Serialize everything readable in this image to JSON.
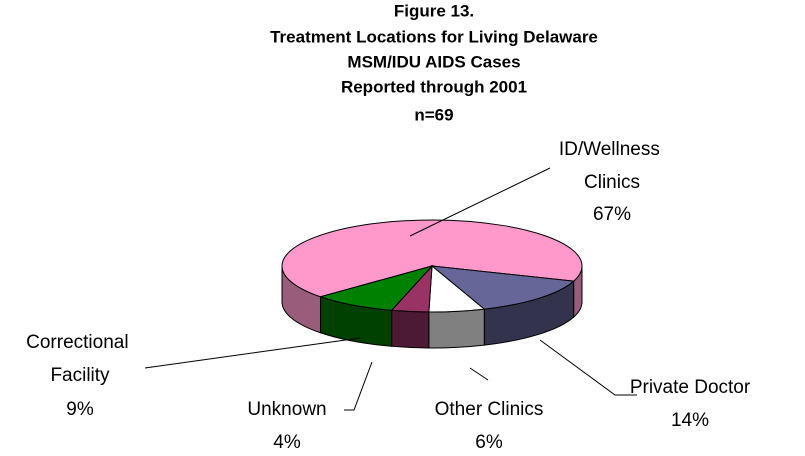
{
  "chart_data": {
    "type": "pie3d",
    "title": [
      "Figure 13.",
      "Treatment Locations for Living Delaware",
      "MSM/IDU AIDS Cases",
      "Reported through 2001",
      "n=69"
    ],
    "categories": [
      "ID/Wellness Clinics",
      "Private Doctor",
      "Other Clinics",
      "Unknown",
      "Correctional Facility"
    ],
    "values": [
      67,
      14,
      6,
      4,
      9
    ],
    "value_labels": [
      "67%",
      "14%",
      "6%",
      "4%",
      "9%"
    ],
    "colors": [
      "#ff99cc",
      "#666699",
      "#ffffff",
      "#993366",
      "#008000"
    ]
  }
}
